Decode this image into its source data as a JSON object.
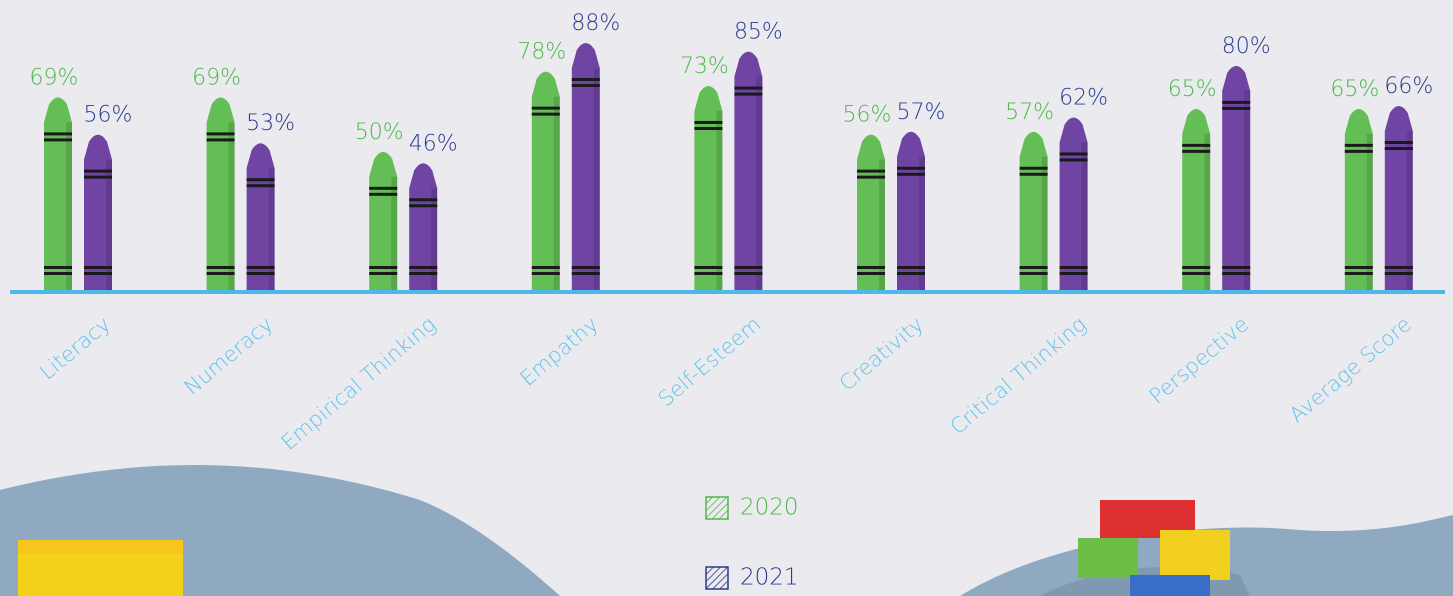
{
  "chart_data": {
    "type": "bar",
    "categories": [
      "Literacy",
      "Numeracy",
      "Empirical Thinking",
      "Empathy",
      "Self-Esteem",
      "Creativity",
      "Critical Thinking",
      "Perspective",
      "Average Score"
    ],
    "series": [
      {
        "name": "2020",
        "color": "#63bf55",
        "label_color": "#4db848",
        "values": [
          69,
          69,
          50,
          78,
          73,
          56,
          57,
          65,
          65
        ],
        "value_labels": [
          "69%",
          "69%",
          "50%",
          "78%",
          "73%",
          "56%",
          "57%",
          "65%",
          "65%"
        ]
      },
      {
        "name": "2021",
        "color": "#6f44a3",
        "label_color": "#2b3a8a",
        "values": [
          56,
          53,
          46,
          88,
          85,
          57,
          62,
          80,
          66
        ],
        "value_labels": [
          "56%",
          "53%",
          "46%",
          "88%",
          "85%",
          "57%",
          "62%",
          "80%",
          "66%"
        ]
      }
    ]
  }
}
